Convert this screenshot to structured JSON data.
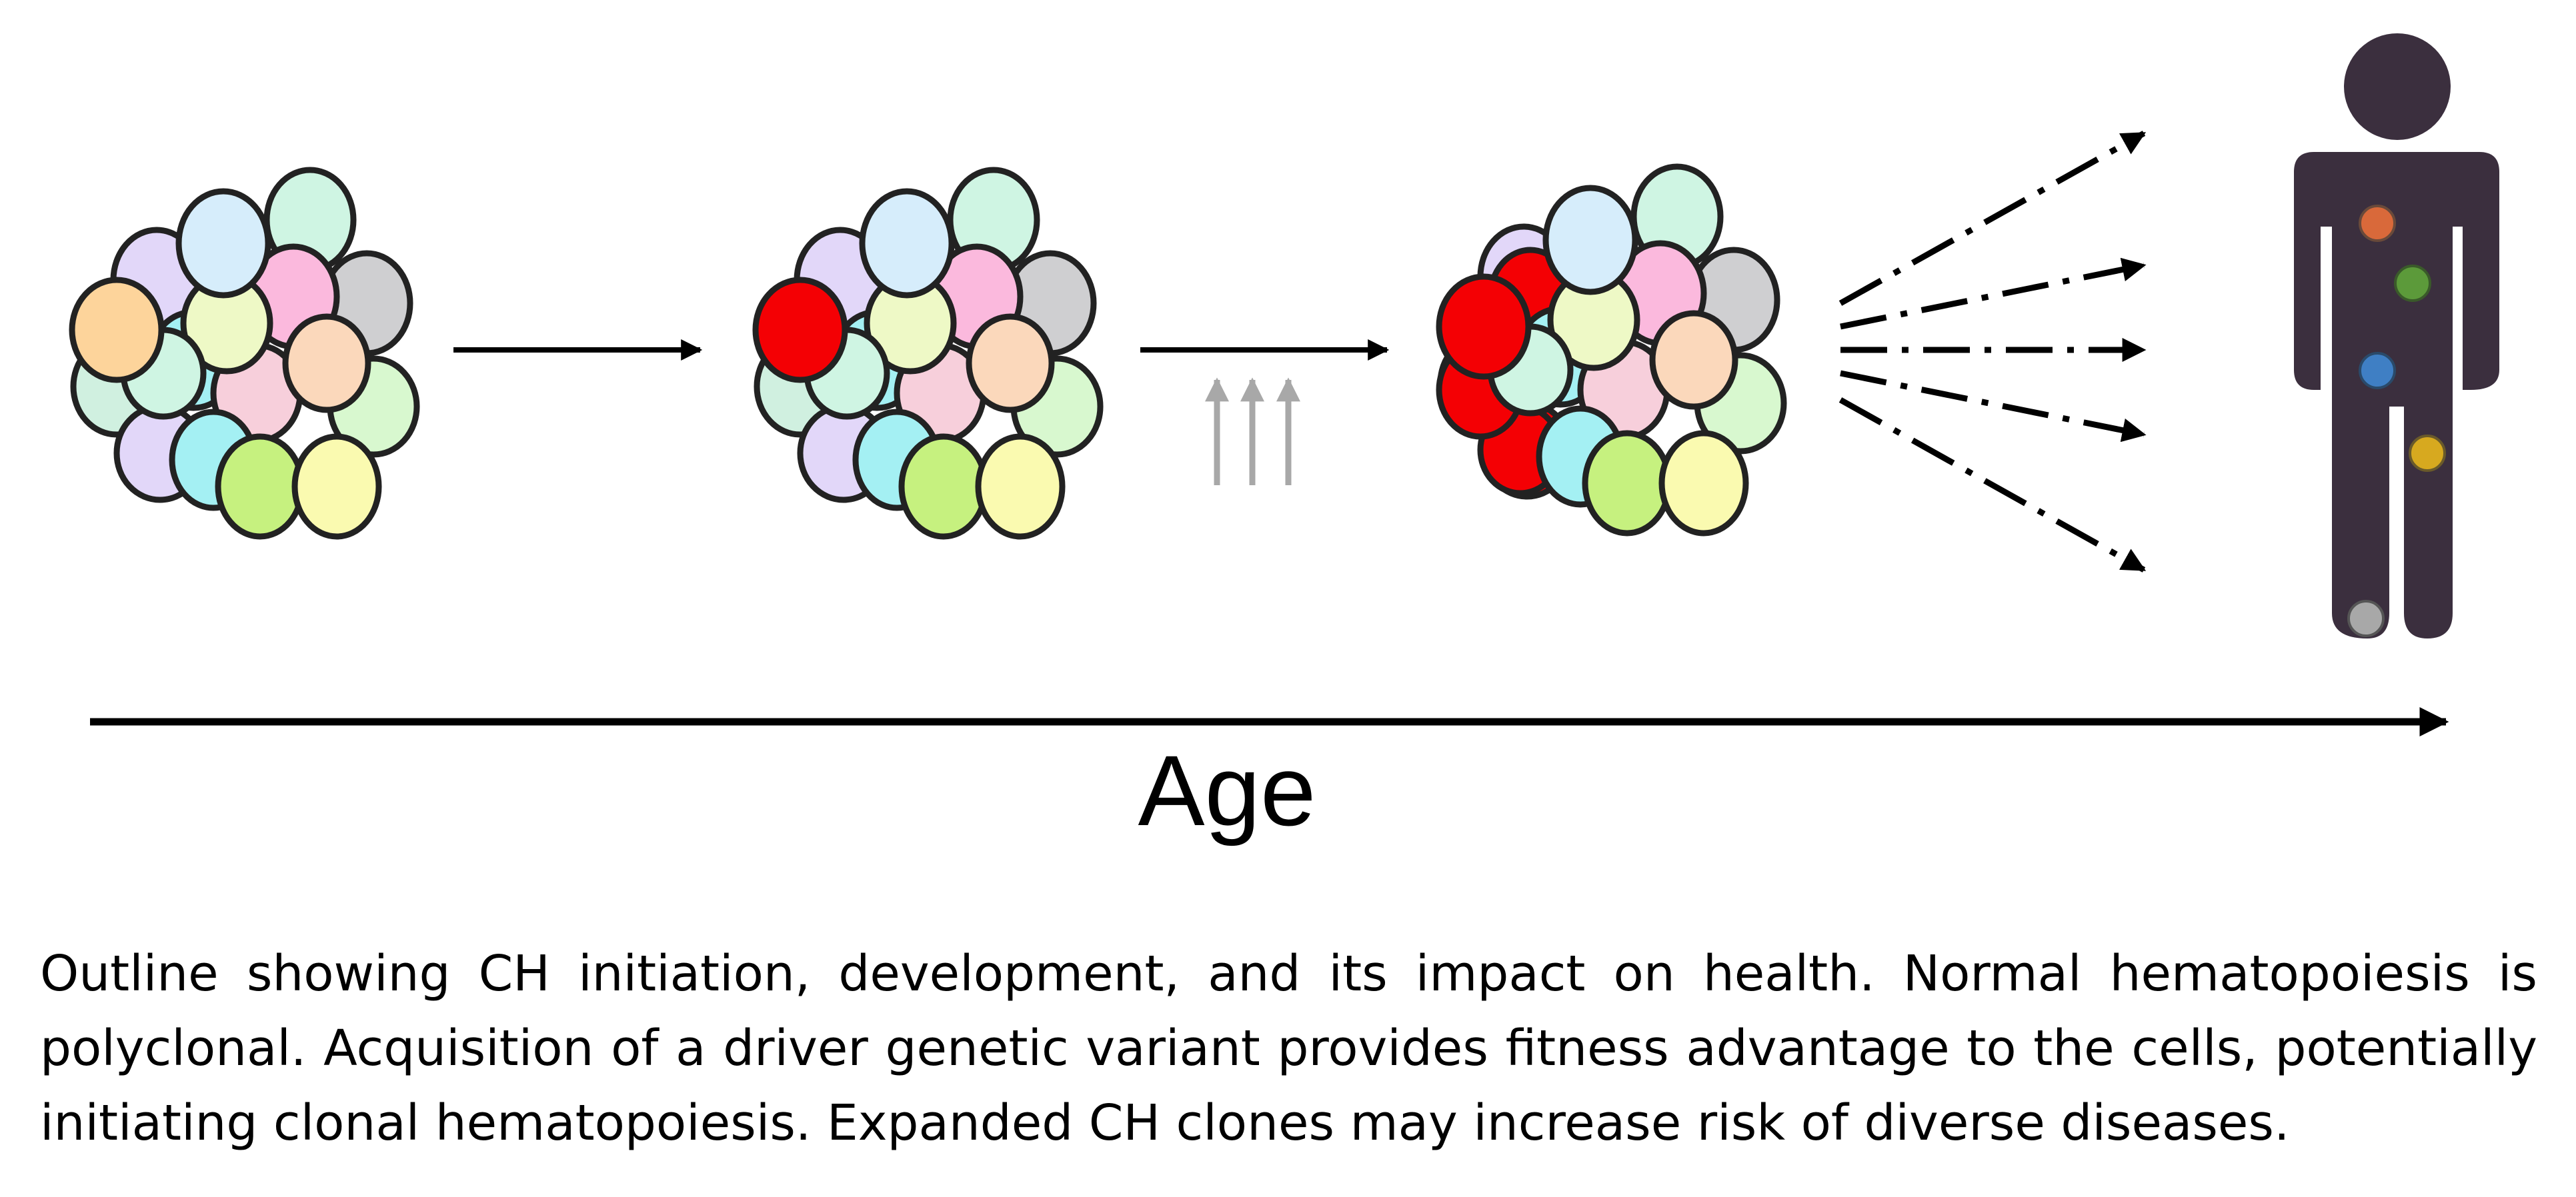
{
  "axis": {
    "label": "Age"
  },
  "caption": {
    "lines": [
      "Outline showing CH initiation, development, and its impact on health. Normal hematopoiesis is",
      "polyclonal. Acquisition of a driver genetic variant provides fitness advantage to the cells, potentially",
      "initiating clonal hematopoiesis. Expanded CH clones may increase risk of diverse diseases."
    ]
  },
  "colors": {
    "clone": "#f40004",
    "outline": "#222222",
    "human": "#3b2f3e",
    "pressure_arrow": "#a8a8a8",
    "cells": [
      "#fdd49b",
      "#d6edfb",
      "#cff5e3",
      "#fbb9dd",
      "#cfcfd1",
      "#eef9c6",
      "#fbd8bb",
      "#f7cfdb",
      "#d8f8cf",
      "#a4f0f3",
      "#c6f17f",
      "#fafab0",
      "#e2d7f9",
      "#d0f0e0"
    ],
    "organ_spots": [
      "#d9693a",
      "#5c9a3a",
      "#3f7fc4",
      "#d7a91f",
      "#a8a8a8"
    ]
  },
  "stages": [
    "polyclonal",
    "driver-variant",
    "expanded-clone"
  ]
}
